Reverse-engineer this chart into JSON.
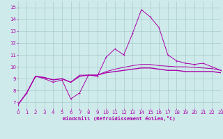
{
  "xlabel": "Windchill (Refroidissement éolien,°C)",
  "ylabel": "",
  "bg_color": "#ceeaea",
  "grid_color": "#aacccc",
  "line_color": "#aa00aa",
  "xlim": [
    0,
    23
  ],
  "ylim": [
    6.5,
    15.5
  ],
  "xticks": [
    0,
    1,
    2,
    3,
    4,
    5,
    6,
    7,
    8,
    9,
    10,
    11,
    12,
    13,
    14,
    15,
    16,
    17,
    18,
    19,
    20,
    21,
    22,
    23
  ],
  "yticks": [
    7,
    8,
    9,
    10,
    11,
    12,
    13,
    14,
    15
  ],
  "line1_x": [
    0,
    1,
    2,
    3,
    4,
    5,
    6,
    7,
    8,
    9,
    10,
    11,
    12,
    13,
    14,
    15,
    16,
    17,
    18,
    19,
    20,
    21,
    22,
    23
  ],
  "line1_y": [
    6.8,
    7.8,
    9.2,
    9.0,
    8.7,
    8.9,
    7.3,
    7.8,
    9.3,
    9.2,
    10.8,
    11.5,
    11.0,
    12.8,
    14.8,
    14.2,
    13.3,
    11.0,
    10.5,
    10.3,
    10.2,
    10.3,
    10.0,
    9.7
  ],
  "line2_x": [
    0,
    1,
    2,
    3,
    4,
    5,
    6,
    7,
    8,
    9,
    10,
    11,
    12,
    13,
    14,
    15,
    16,
    17,
    18,
    19,
    20,
    21,
    22,
    23
  ],
  "line2_y": [
    6.8,
    7.8,
    9.2,
    9.1,
    8.9,
    9.0,
    8.7,
    9.2,
    9.3,
    9.3,
    9.5,
    9.6,
    9.7,
    9.8,
    9.9,
    9.9,
    9.8,
    9.7,
    9.7,
    9.6,
    9.6,
    9.6,
    9.6,
    9.5
  ],
  "line3_x": [
    0,
    1,
    2,
    3,
    4,
    5,
    6,
    7,
    8,
    9,
    10,
    11,
    12,
    13,
    14,
    15,
    16,
    17,
    18,
    19,
    20,
    21,
    22,
    23
  ],
  "line3_y": [
    6.8,
    7.8,
    9.2,
    9.1,
    8.9,
    9.0,
    8.7,
    9.3,
    9.3,
    9.3,
    9.6,
    9.8,
    9.95,
    10.1,
    10.2,
    10.2,
    10.1,
    10.05,
    10.0,
    10.0,
    9.95,
    9.9,
    9.85,
    9.7
  ],
  "marker": "P",
  "markersize": 1.8,
  "lw1": 0.7,
  "lw2": 1.0,
  "lw3": 0.7,
  "tick_labelsize": 5.0,
  "xlabel_fontsize": 5.2
}
